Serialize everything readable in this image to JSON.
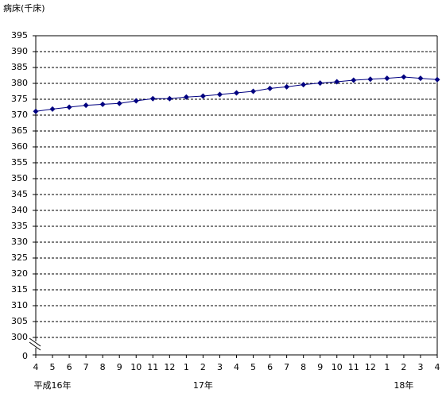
{
  "chart_data": {
    "type": "line",
    "y_axis_label": "病床(千床)",
    "categories": [
      "4",
      "5",
      "6",
      "7",
      "8",
      "9",
      "10",
      "11",
      "12",
      "1",
      "2",
      "3",
      "4",
      "5",
      "6",
      "7",
      "8",
      "9",
      "10",
      "11",
      "12",
      "1",
      "2",
      "3",
      "4"
    ],
    "year_labels": [
      "平成16年",
      "17年",
      "18年"
    ],
    "series": [
      {
        "name": "病床",
        "color": "#000080",
        "values": [
          371.2,
          371.9,
          372.5,
          373.1,
          373.4,
          373.7,
          374.5,
          375.2,
          375.2,
          375.7,
          376.0,
          376.5,
          377.0,
          377.5,
          378.4,
          378.9,
          379.6,
          380.1,
          380.5,
          381.0,
          381.3,
          381.6,
          382.0,
          381.6,
          381.2
        ]
      }
    ],
    "ylim": [
      300,
      395
    ],
    "yticks": [
      300,
      305,
      310,
      315,
      320,
      325,
      330,
      335,
      340,
      345,
      350,
      355,
      360,
      365,
      370,
      375,
      380,
      385,
      390,
      395
    ],
    "axis_break_tick": 0,
    "grid": true
  }
}
